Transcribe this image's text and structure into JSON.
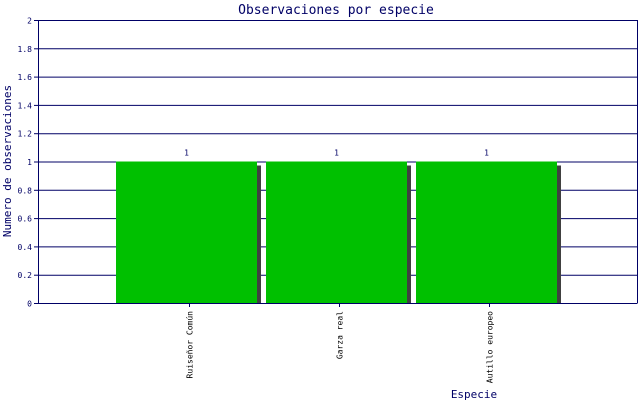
{
  "chart_data": {
    "type": "bar",
    "title": "Observaciones por especie",
    "xlabel": "Especie",
    "ylabel": "Numero de observaciones",
    "categories": [
      "Ruiseñor Común",
      "Garza real",
      "Autillo europeo"
    ],
    "values": [
      1,
      1,
      1
    ],
    "data_labels": [
      "1",
      "1",
      "1"
    ],
    "ylim": [
      0,
      2
    ],
    "yticks": [
      0,
      0.2,
      0.4,
      0.6,
      0.8,
      1,
      1.2,
      1.4,
      1.6,
      1.8,
      2
    ],
    "ytick_labels": [
      "0",
      "0.2",
      "0.4",
      "0.6",
      "0.8",
      "1",
      "1.2",
      "1.4",
      "1.6",
      "1.8",
      "2"
    ],
    "grid": true,
    "legend": "none",
    "colors": {
      "bar": "#00c000",
      "bar_shadow": "#404040",
      "axis": "#000066",
      "grid": "#000066",
      "text": "#000066",
      "background": "#ffffff"
    }
  }
}
